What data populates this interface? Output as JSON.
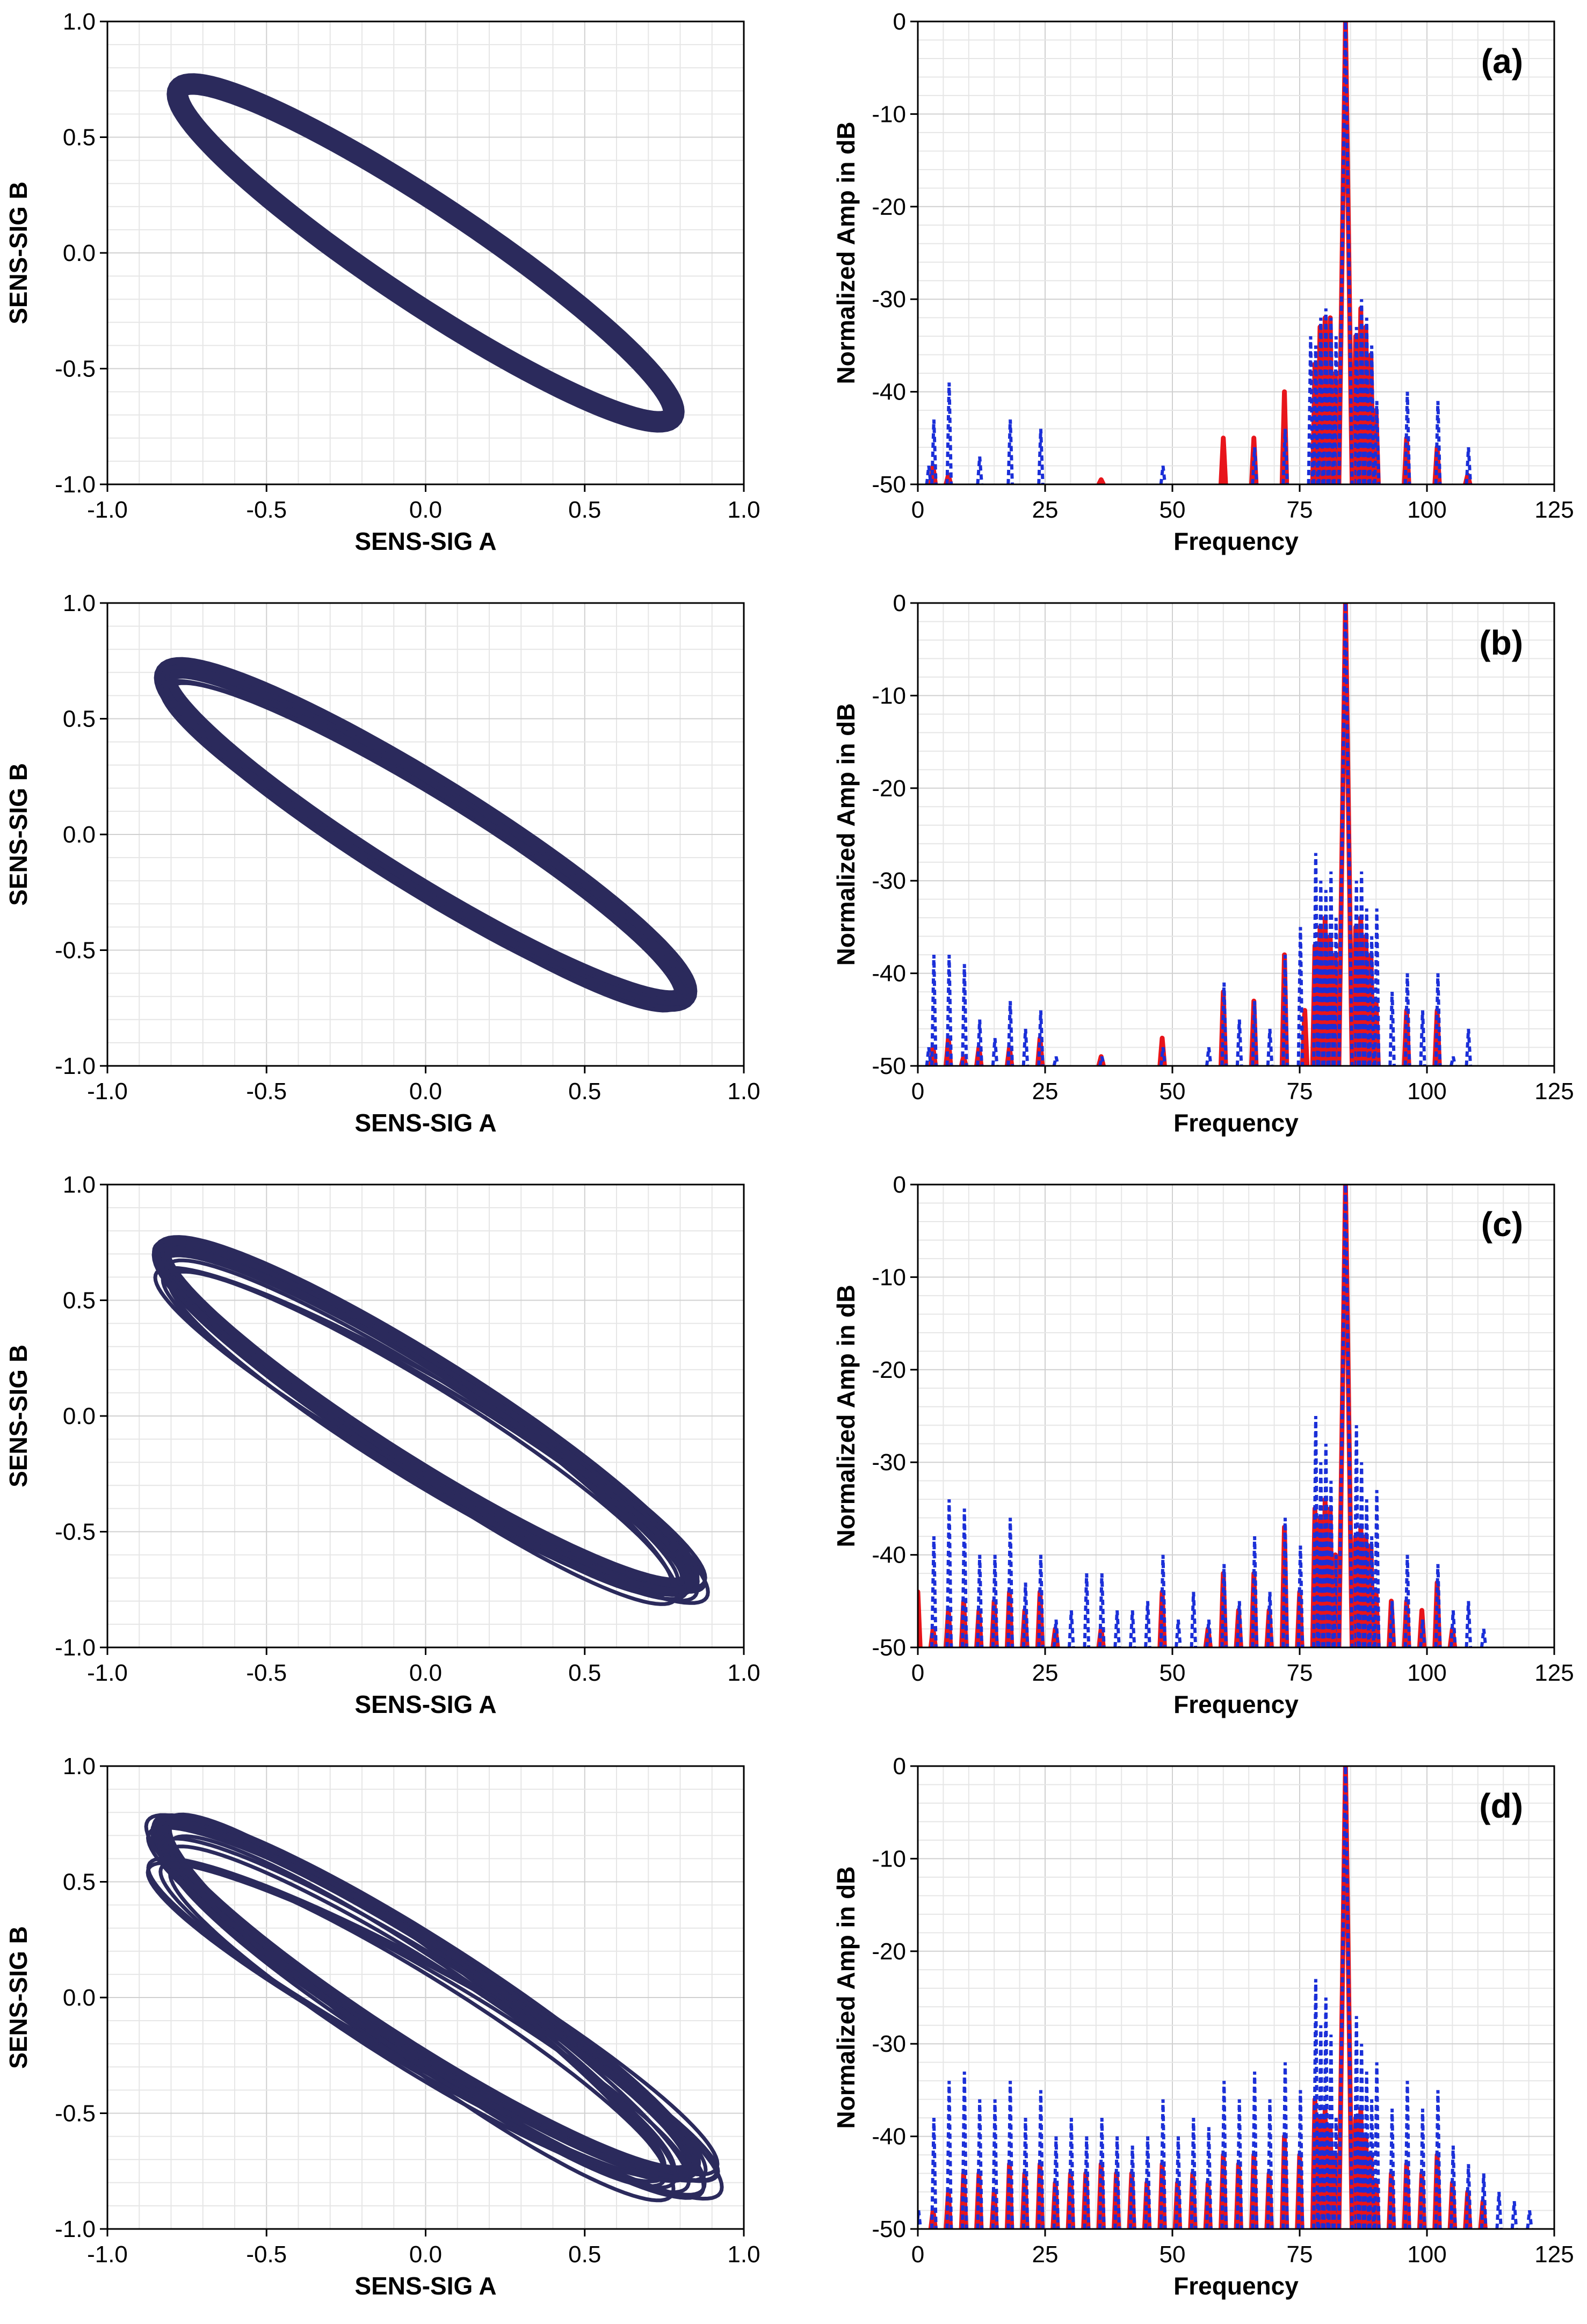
{
  "chart_data": [
    {
      "id": "orbit-1",
      "type": "scatter",
      "subtype": "orbit",
      "xlabel": "SENS-SIG A",
      "ylabel": "SENS-SIG B",
      "xlim": [
        -1.0,
        1.0
      ],
      "ylim": [
        -1.0,
        1.0
      ],
      "xticks": [
        "-1.0",
        "-0.5",
        "0.0",
        "0.5",
        "1.0"
      ],
      "yticks": [
        "-1.0",
        "-0.5",
        "0.0",
        "0.5",
        "1.0"
      ],
      "grid": true,
      "series": [
        {
          "name": "orbit",
          "color": "#2b2a5c",
          "x_amplitude": 0.78,
          "y_amplitude": 0.73,
          "y_phase_deg": 160,
          "line_weight": 40,
          "extra_loops": 0,
          "loop_variation": 0.0
        }
      ]
    },
    {
      "id": "spectrum-a",
      "type": "line",
      "subtype": "spectrum",
      "panel_label": "(a)",
      "xlabel": "Frequency",
      "ylabel": "Normalized Amp in dB",
      "xlim": [
        0,
        125
      ],
      "ylim": [
        -50,
        0
      ],
      "xticks": [
        "0",
        "25",
        "50",
        "75",
        "100",
        "125"
      ],
      "yticks": [
        "0",
        "-10",
        "-20",
        "-30",
        "-40",
        "-50"
      ],
      "grid": true,
      "series": [
        {
          "name": "red-solid",
          "color": "#e8151b",
          "x": [
            3,
            6,
            36,
            60,
            66,
            72,
            78,
            79,
            80,
            81,
            82,
            86,
            87,
            88,
            89,
            90,
            96,
            102,
            108
          ],
          "y": [
            -48,
            -49,
            -49.5,
            -45,
            -45,
            -40,
            -37,
            -33,
            -32,
            -32,
            -38,
            -34,
            -31,
            -33,
            -36,
            -42,
            -45,
            -46,
            -49
          ]
        },
        {
          "name": "blue-dotted",
          "color": "#1b2fd8",
          "x": [
            2,
            3,
            6,
            12,
            18,
            24,
            48,
            66,
            72,
            77,
            78,
            79,
            80,
            81,
            82,
            86,
            87,
            88,
            89,
            90,
            96,
            102,
            108
          ],
          "y": [
            -48,
            -43,
            -39,
            -47,
            -43,
            -44,
            -48,
            -46,
            -44,
            -34,
            -35,
            -32,
            -31,
            -32,
            -34,
            -33,
            -30,
            -32,
            -35,
            -41,
            -40,
            -41,
            -46
          ]
        }
      ],
      "peak": {
        "x": 84,
        "y": 0
      }
    },
    {
      "id": "orbit-2",
      "type": "scatter",
      "subtype": "orbit",
      "xlabel": "SENS-SIG A",
      "ylabel": "SENS-SIG B",
      "xlim": [
        -1.0,
        1.0
      ],
      "ylim": [
        -1.0,
        1.0
      ],
      "xticks": [
        "-1.0",
        "-0.5",
        "0.0",
        "0.5",
        "1.0"
      ],
      "yticks": [
        "-1.0",
        "-0.5",
        "0.0",
        "0.5",
        "1.0"
      ],
      "grid": true,
      "series": [
        {
          "name": "orbit",
          "color": "#2b2a5c",
          "x_amplitude": 0.82,
          "y_amplitude": 0.72,
          "y_phase_deg": 160,
          "line_weight": 40,
          "extra_loops": 8,
          "loop_variation": 0.08
        }
      ]
    },
    {
      "id": "spectrum-b",
      "type": "line",
      "subtype": "spectrum",
      "panel_label": "(b)",
      "xlabel": "Frequency",
      "ylabel": "Normalized Amp in dB",
      "xlim": [
        0,
        125
      ],
      "ylim": [
        -50,
        0
      ],
      "xticks": [
        "0",
        "25",
        "50",
        "75",
        "100",
        "125"
      ],
      "yticks": [
        "0",
        "-10",
        "-20",
        "-30",
        "-40",
        "-50"
      ],
      "grid": true,
      "series": [
        {
          "name": "red-solid",
          "color": "#e8151b",
          "x": [
            3,
            6,
            9,
            12,
            18,
            24,
            36,
            48,
            60,
            66,
            72,
            76,
            78,
            79,
            80,
            81,
            82,
            86,
            87,
            88,
            89,
            90,
            96,
            102
          ],
          "y": [
            -48,
            -47,
            -49,
            -48,
            -48,
            -47,
            -49,
            -47,
            -42,
            -43,
            -38,
            -44,
            -37,
            -35,
            -34,
            -36,
            -38,
            -35,
            -34,
            -36,
            -38,
            -43,
            -44,
            -44
          ]
        },
        {
          "name": "blue-dotted",
          "color": "#1b2fd8",
          "x": [
            2,
            3,
            6,
            9,
            12,
            15,
            18,
            21,
            24,
            27,
            36,
            48,
            57,
            60,
            63,
            66,
            69,
            72,
            75,
            78,
            79,
            80,
            81,
            82,
            86,
            87,
            88,
            89,
            90,
            93,
            96,
            99,
            102,
            105,
            108
          ],
          "y": [
            -48,
            -38,
            -38,
            -39,
            -45,
            -47,
            -43,
            -46,
            -44,
            -49,
            -49,
            -48,
            -48,
            -41,
            -45,
            -43,
            -46,
            -38,
            -35,
            -27,
            -30,
            -31,
            -29,
            -34,
            -30,
            -29,
            -33,
            -36,
            -33,
            -42,
            -40,
            -44,
            -40,
            -49,
            -46
          ]
        }
      ],
      "peak": {
        "x": 84,
        "y": 0
      }
    },
    {
      "id": "orbit-3",
      "type": "scatter",
      "subtype": "orbit",
      "xlabel": "SENS-SIG A",
      "ylabel": "SENS-SIG B",
      "xlim": [
        -1.0,
        1.0
      ],
      "ylim": [
        -1.0,
        1.0
      ],
      "xticks": [
        "-1.0",
        "-0.5",
        "0.0",
        "0.5",
        "1.0"
      ],
      "yticks": [
        "-1.0",
        "-0.5",
        "0.0",
        "0.5",
        "1.0"
      ],
      "grid": true,
      "series": [
        {
          "name": "orbit",
          "color": "#2b2a5c",
          "x_amplitude": 0.83,
          "y_amplitude": 0.74,
          "y_phase_deg": 160,
          "line_weight": 36,
          "extra_loops": 12,
          "loop_variation": 0.14
        }
      ]
    },
    {
      "id": "spectrum-c",
      "type": "line",
      "subtype": "spectrum",
      "panel_label": "(c)",
      "xlabel": "Frequency",
      "ylabel": "Normalized Amp in dB",
      "xlim": [
        0,
        125
      ],
      "ylim": [
        -50,
        0
      ],
      "xticks": [
        "0",
        "25",
        "50",
        "75",
        "100",
        "125"
      ],
      "yticks": [
        "0",
        "-10",
        "-20",
        "-30",
        "-40",
        "-50"
      ],
      "grid": true,
      "series": [
        {
          "name": "red-solid",
          "color": "#e8151b",
          "x": [
            0,
            3,
            6,
            9,
            12,
            15,
            18,
            21,
            24,
            27,
            36,
            48,
            57,
            60,
            63,
            66,
            69,
            72,
            75,
            78,
            79,
            80,
            81,
            82,
            86,
            87,
            88,
            89,
            90,
            93,
            96,
            99,
            102,
            105
          ],
          "y": [
            -44,
            -48,
            -46,
            -45,
            -46,
            -45,
            -44,
            -46,
            -44,
            -48,
            -48,
            -44,
            -48,
            -42,
            -46,
            -42,
            -46,
            -37,
            -44,
            -35,
            -36,
            -34,
            -35,
            -40,
            -38,
            -37,
            -38,
            -39,
            -44,
            -45,
            -45,
            -46,
            -43,
            -48
          ]
        },
        {
          "name": "blue-dotted",
          "color": "#1b2fd8",
          "x": [
            3,
            6,
            9,
            12,
            15,
            18,
            21,
            24,
            27,
            30,
            33,
            36,
            39,
            42,
            45,
            48,
            51,
            54,
            57,
            60,
            63,
            66,
            69,
            72,
            75,
            78,
            79,
            80,
            81,
            82,
            86,
            87,
            88,
            89,
            90,
            93,
            96,
            99,
            102,
            105,
            108,
            111
          ],
          "y": [
            -38,
            -34,
            -35,
            -40,
            -40,
            -36,
            -43,
            -40,
            -47,
            -46,
            -42,
            -42,
            -46,
            -46,
            -45,
            -40,
            -47,
            -44,
            -47,
            -41,
            -45,
            -38,
            -44,
            -36,
            -39,
            -25,
            -30,
            -28,
            -32,
            -40,
            -26,
            -30,
            -34,
            -38,
            -33,
            -45,
            -40,
            -47,
            -41,
            -46,
            -45,
            -48
          ]
        }
      ],
      "peak": {
        "x": 84,
        "y": 0
      }
    },
    {
      "id": "orbit-4",
      "type": "scatter",
      "subtype": "orbit",
      "xlabel": "SENS-SIG A",
      "ylabel": "SENS-SIG B",
      "xlim": [
        -1.0,
        1.0
      ],
      "ylim": [
        -1.0,
        1.0
      ],
      "xticks": [
        "-1.0",
        "-0.5",
        "0.0",
        "0.5",
        "1.0"
      ],
      "yticks": [
        "-1.0",
        "-0.5",
        "0.0",
        "0.5",
        "1.0"
      ],
      "grid": true,
      "series": [
        {
          "name": "orbit",
          "color": "#2b2a5c",
          "x_amplitude": 0.84,
          "y_amplitude": 0.76,
          "y_phase_deg": 160,
          "line_weight": 30,
          "extra_loops": 16,
          "loop_variation": 0.22
        }
      ]
    },
    {
      "id": "spectrum-d",
      "type": "line",
      "subtype": "spectrum",
      "panel_label": "(d)",
      "xlabel": "Frequency",
      "ylabel": "Normalized Amp in dB",
      "xlim": [
        0,
        125
      ],
      "ylim": [
        -50,
        0
      ],
      "xticks": [
        "0",
        "25",
        "50",
        "75",
        "100",
        "125"
      ],
      "yticks": [
        "0",
        "-10",
        "-20",
        "-30",
        "-40",
        "-50"
      ],
      "grid": true,
      "series": [
        {
          "name": "red-solid",
          "color": "#e8151b",
          "x": [
            3,
            6,
            9,
            12,
            15,
            18,
            21,
            24,
            27,
            30,
            33,
            36,
            39,
            42,
            45,
            48,
            51,
            54,
            57,
            60,
            63,
            66,
            69,
            72,
            75,
            78,
            79,
            80,
            81,
            82,
            86,
            87,
            88,
            89,
            90,
            93,
            96,
            99,
            102,
            105,
            108,
            111
          ],
          "y": [
            -48,
            -46,
            -44,
            -44,
            -46,
            -43,
            -44,
            -43,
            -45,
            -44,
            -44,
            -43,
            -44,
            -44,
            -45,
            -43,
            -45,
            -44,
            -45,
            -42,
            -43,
            -42,
            -44,
            -40,
            -42,
            -36,
            -38,
            -37,
            -39,
            -42,
            -38,
            -37,
            -40,
            -42,
            -45,
            -44,
            -43,
            -44,
            -42,
            -45,
            -46,
            -47
          ]
        },
        {
          "name": "blue-dotted",
          "color": "#1b2fd8",
          "x": [
            0,
            3,
            6,
            9,
            12,
            15,
            18,
            21,
            24,
            27,
            30,
            33,
            36,
            39,
            42,
            45,
            48,
            51,
            54,
            57,
            60,
            63,
            66,
            69,
            72,
            75,
            78,
            79,
            80,
            81,
            82,
            86,
            87,
            88,
            89,
            90,
            93,
            96,
            99,
            102,
            105,
            108,
            111,
            114,
            117,
            120
          ],
          "y": [
            -48,
            -38,
            -34,
            -33,
            -36,
            -36,
            -34,
            -38,
            -35,
            -40,
            -38,
            -40,
            -38,
            -40,
            -41,
            -40,
            -36,
            -40,
            -38,
            -39,
            -34,
            -36,
            -33,
            -36,
            -32,
            -35,
            -23,
            -28,
            -25,
            -29,
            -38,
            -27,
            -30,
            -33,
            -36,
            -32,
            -37,
            -34,
            -37,
            -35,
            -41,
            -43,
            -44,
            -46,
            -47,
            -48
          ]
        }
      ],
      "peak": {
        "x": 84,
        "y": 0
      }
    }
  ]
}
